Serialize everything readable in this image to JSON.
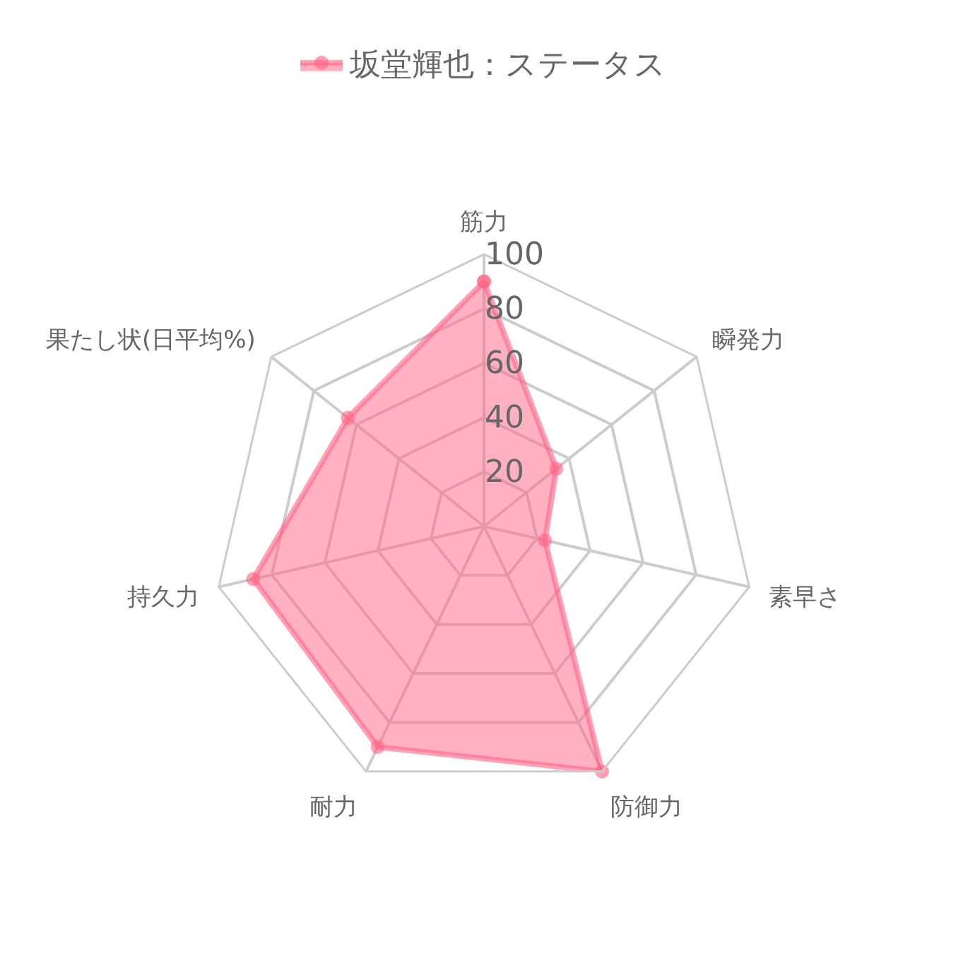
{
  "chart_data": {
    "type": "radar",
    "categories": [
      "筋力",
      "瞬発力",
      "素早さ",
      "防御力",
      "耐力",
      "持久力",
      "果たし状(日平均%)"
    ],
    "series": [
      {
        "name": "坂堂輝也：ステータス",
        "color": "#ff6384",
        "values": [
          90,
          34,
          23,
          100,
          90,
          87,
          64
        ]
      }
    ],
    "ylim": [
      0,
      100
    ],
    "yticks": [
      20,
      40,
      60,
      80,
      100
    ],
    "grid": true,
    "legend": "top",
    "marker": "circle"
  }
}
